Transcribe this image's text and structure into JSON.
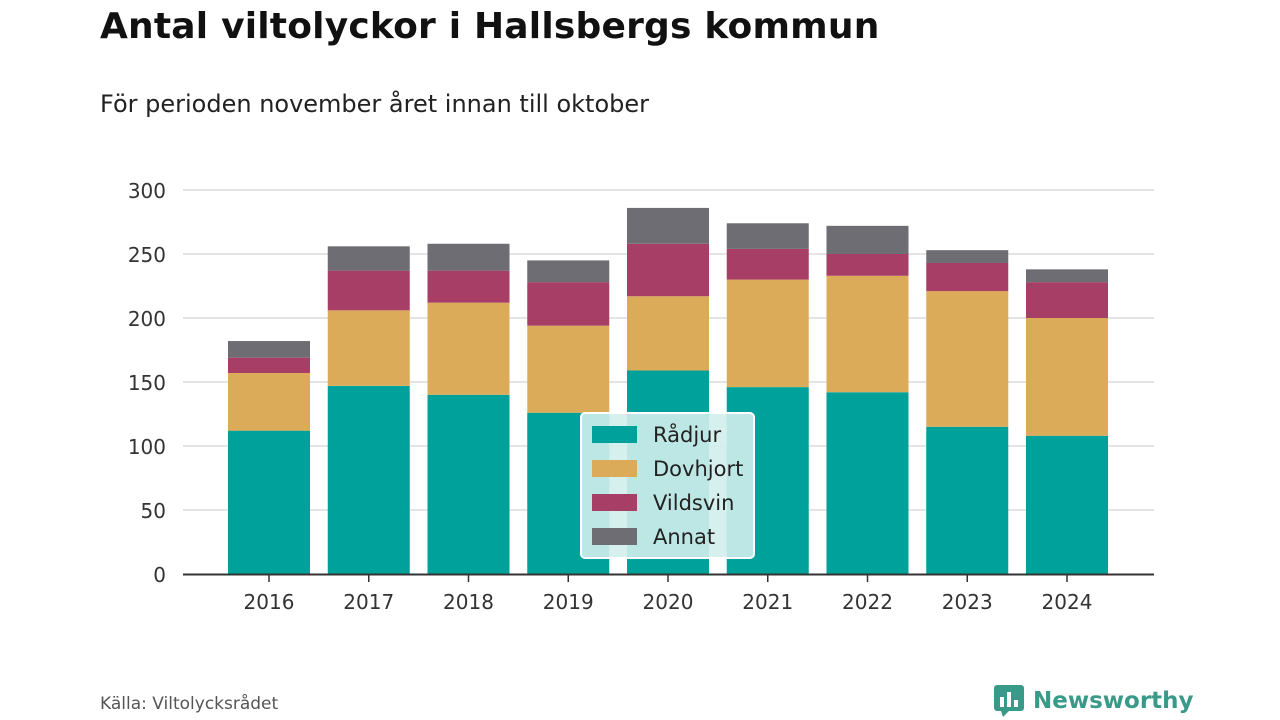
{
  "header": {
    "title": "Antal viltolyckor i Hallsbergs kommun",
    "subtitle": "För perioden november året innan till oktober"
  },
  "footer": {
    "source": "Källa: Viltolycksrådet",
    "brand": "Newsworthy"
  },
  "colors": {
    "radjur": "#00a19a",
    "dovhjort": "#dcab59",
    "vildsvin": "#a63e66",
    "annat": "#6e6d74",
    "brand": "#3a9a8a"
  },
  "chart_data": {
    "type": "bar",
    "stacked": true,
    "categories": [
      "2016",
      "2017",
      "2018",
      "2019",
      "2020",
      "2021",
      "2022",
      "2023",
      "2024"
    ],
    "series": [
      {
        "name": "Rådjur",
        "values": [
          112,
          147,
          140,
          126,
          159,
          146,
          142,
          115,
          108
        ]
      },
      {
        "name": "Dovhjort",
        "values": [
          45,
          59,
          72,
          68,
          58,
          84,
          91,
          106,
          92
        ]
      },
      {
        "name": "Vildsvin",
        "values": [
          12,
          31,
          25,
          34,
          41,
          24,
          17,
          22,
          28
        ]
      },
      {
        "name": "Annat",
        "values": [
          13,
          19,
          21,
          17,
          28,
          20,
          22,
          10,
          10
        ]
      }
    ],
    "yticks": [
      0,
      50,
      100,
      150,
      200,
      250,
      300
    ],
    "ylim": [
      0,
      300
    ],
    "grid": true,
    "legend": "center"
  }
}
